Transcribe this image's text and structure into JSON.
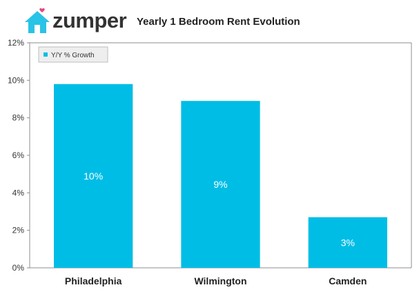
{
  "brand": {
    "name": "zumper",
    "accent_color": "#28c3e6",
    "heart_color": "#e8467c"
  },
  "chart_data": {
    "type": "bar",
    "title": "Yearly 1 Bedroom Rent Evolution",
    "categories": [
      "Philadelphia",
      "Wilmington",
      "Camden"
    ],
    "series": [
      {
        "name": "Y/Y % Growth",
        "values": [
          9.8,
          8.9,
          2.7
        ],
        "data_labels": [
          "10%",
          "9%",
          "3%"
        ],
        "color": "#00bde6"
      }
    ],
    "ylim": [
      0,
      12
    ],
    "yticks": [
      0,
      2,
      4,
      6,
      8,
      10,
      12
    ],
    "ytick_labels": [
      "0%",
      "2%",
      "4%",
      "6%",
      "8%",
      "10%",
      "12%"
    ],
    "xlabel": "",
    "ylabel": "",
    "grid": false,
    "legend_position": "top-left"
  }
}
